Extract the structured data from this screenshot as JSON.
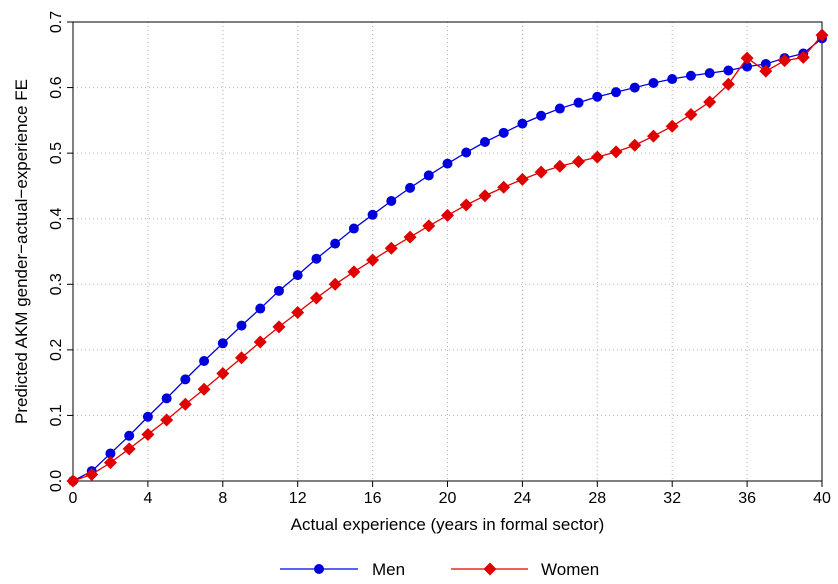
{
  "chart_data": {
    "type": "line",
    "title": "",
    "xlabel": "Actual experience (years in formal sector)",
    "ylabel": "Predicted AKM gender−actual−experience FE",
    "xlim": [
      0,
      40
    ],
    "ylim": [
      0,
      0.7
    ],
    "xticks": [
      0,
      4,
      8,
      12,
      16,
      20,
      24,
      28,
      32,
      36,
      40
    ],
    "yticks": [
      0.0,
      0.1,
      0.2,
      0.3,
      0.4,
      0.5,
      0.6,
      0.7
    ],
    "ytick_labels": [
      "0.0",
      "0.1",
      "0.2",
      "0.3",
      "0.4",
      "0.5",
      "0.6",
      "0.7"
    ],
    "grid": true,
    "legend_position": "bottom",
    "x": [
      0,
      1,
      2,
      3,
      4,
      5,
      6,
      7,
      8,
      9,
      10,
      11,
      12,
      13,
      14,
      15,
      16,
      17,
      18,
      19,
      20,
      21,
      22,
      23,
      24,
      25,
      26,
      27,
      28,
      29,
      30,
      31,
      32,
      33,
      34,
      35,
      36,
      37,
      38,
      39,
      40
    ],
    "series": [
      {
        "name": "Men",
        "color": "#0000dd",
        "marker": "circle",
        "values": [
          0.0,
          0.015,
          0.042,
          0.069,
          0.098,
          0.126,
          0.155,
          0.183,
          0.21,
          0.237,
          0.263,
          0.29,
          0.314,
          0.339,
          0.362,
          0.385,
          0.406,
          0.427,
          0.447,
          0.466,
          0.484,
          0.501,
          0.517,
          0.531,
          0.545,
          0.557,
          0.568,
          0.577,
          0.586,
          0.593,
          0.6,
          0.607,
          0.613,
          0.618,
          0.622,
          0.626,
          0.632,
          0.636,
          0.645,
          0.652,
          0.675
        ]
      },
      {
        "name": "Women",
        "color": "#e00000",
        "marker": "diamond",
        "values": [
          0.0,
          0.01,
          0.028,
          0.049,
          0.071,
          0.093,
          0.117,
          0.14,
          0.164,
          0.188,
          0.212,
          0.235,
          0.257,
          0.279,
          0.3,
          0.319,
          0.337,
          0.355,
          0.372,
          0.389,
          0.405,
          0.421,
          0.435,
          0.448,
          0.46,
          0.471,
          0.48,
          0.487,
          0.494,
          0.502,
          0.512,
          0.526,
          0.541,
          0.559,
          0.578,
          0.605,
          0.645,
          0.625,
          0.641,
          0.646,
          0.68
        ]
      }
    ]
  }
}
